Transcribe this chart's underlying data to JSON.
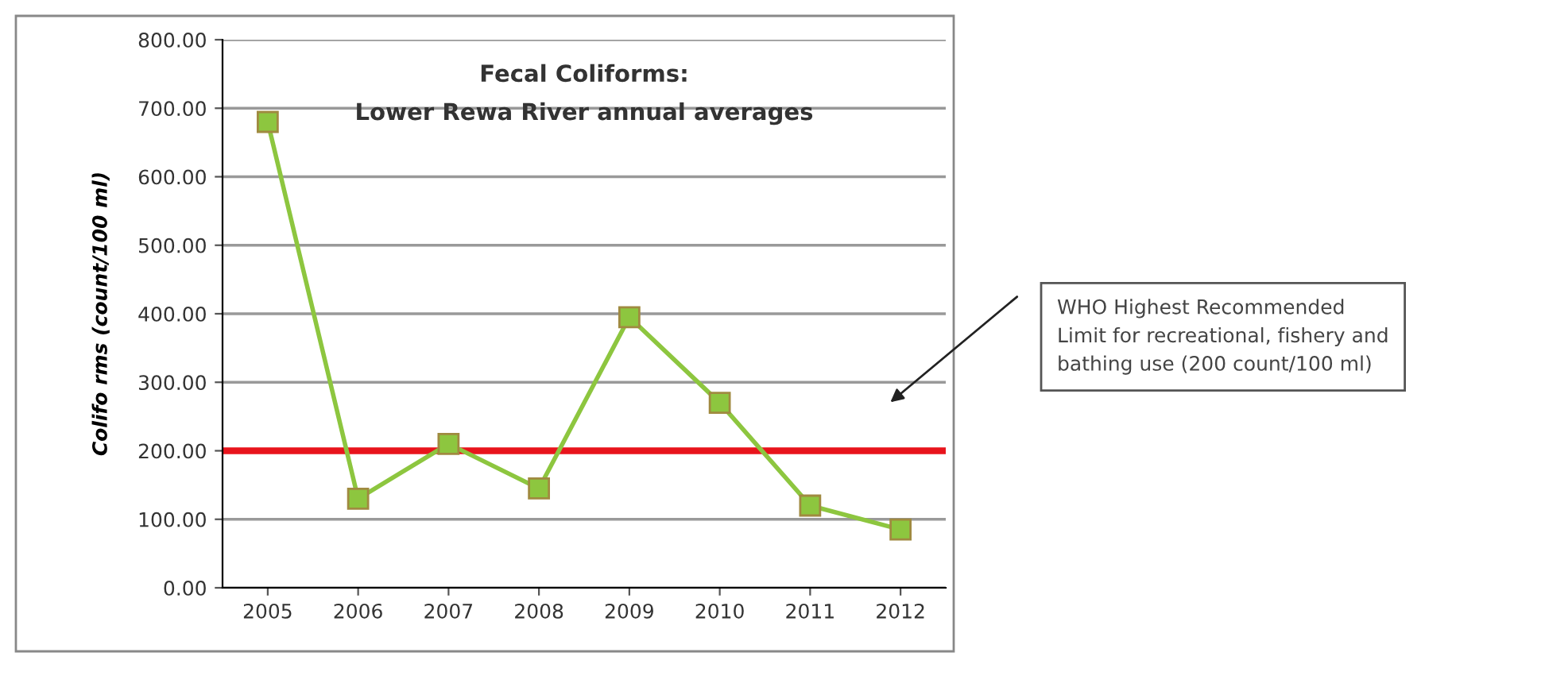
{
  "chart_data": {
    "type": "line",
    "title": "Fecal Coliforms:\nLower Rewa River annual averages",
    "ylabel": "Colifo rms (count/100 ml)",
    "categories": [
      "2005",
      "2006",
      "2007",
      "2008",
      "2009",
      "2010",
      "2011",
      "2012"
    ],
    "series": [
      {
        "color": "#8dc63f",
        "values": [
          680,
          130,
          210,
          145,
          395,
          270,
          120,
          85
        ]
      }
    ],
    "ylim": [
      0,
      800
    ],
    "yticks": [
      {
        "value": 0,
        "label": "0.00"
      },
      {
        "value": 100,
        "label": "100.00"
      },
      {
        "value": 200,
        "label": "200.00"
      },
      {
        "value": 300,
        "label": "300.00"
      },
      {
        "value": 400,
        "label": "400.00"
      },
      {
        "value": 500,
        "label": "500.00"
      },
      {
        "value": 600,
        "label": "600.00"
      },
      {
        "value": 700,
        "label": "700.00"
      },
      {
        "value": 800,
        "label": "800.00"
      }
    ],
    "grid": "y",
    "marker": "square",
    "line_style": "solid",
    "legend": false,
    "ref_lines": [
      {
        "axis": "y",
        "value": 200,
        "color": "#e8141c",
        "line_style": "solid"
      }
    ],
    "annotations": [
      "WHO Highest Recommended\nLimit for recreational, fishery and\nbathing use (200 count/100 ml)"
    ]
  }
}
